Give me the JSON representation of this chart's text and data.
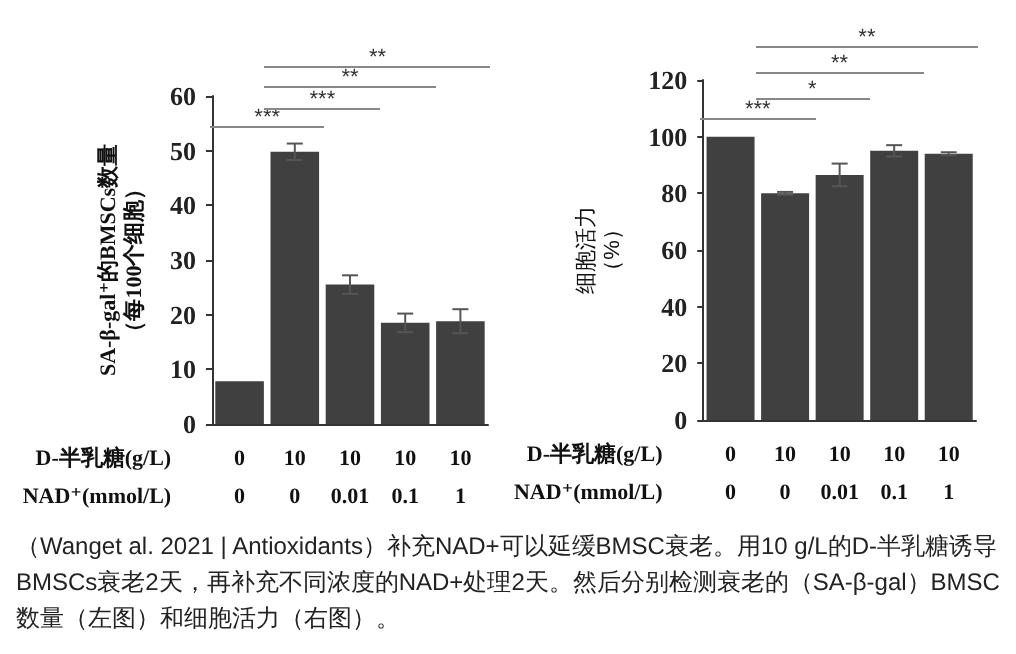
{
  "chart_data": [
    {
      "type": "bar",
      "ylabel": "SA-β-gal⁺的BMSCs数量（每100个细胞）",
      "xlabel": "D-半乳糖(g/L)\nNAD⁺(mmol/L)",
      "categories": [
        "0\n0",
        "10\n0",
        "10\n0.01",
        "10\n0.1",
        "10\n1"
      ],
      "values": [
        7.8,
        49.8,
        25.5,
        18.5,
        18.8
      ],
      "errors": [
        null,
        1.5,
        1.7,
        1.7,
        2.2
      ],
      "color": "#404040",
      "ylim": [
        0,
        60
      ],
      "yticks": [
        0,
        10,
        20,
        30,
        40,
        50,
        60
      ],
      "annotations": [
        "***",
        "***",
        "**",
        "**",
        "（Wanget al. 2021 | Antioxidants）补充NAD+可以延缓BMSC衰老。用10 g/L的D-半乳糖诱导BMSCs衰老2天，再补充不同浓度的NAD+处理2天。然后分别检测衰老的（SA-β-gal）BMSC数量（左图）和细胞活力（右图）。"
      ]
    },
    {
      "type": "bar",
      "ylabel": "细胞活力（%）",
      "xlabel": "D-半乳糖(g/L)\nNAD⁺(mmol/L)",
      "categories": [
        "0\n0",
        "10\n0",
        "10\n0.01",
        "10\n0.1",
        "10\n1"
      ],
      "values": [
        100,
        80,
        86.5,
        95,
        94
      ],
      "errors": [
        null,
        0.5,
        4,
        2,
        0.5
      ],
      "color": "#404040",
      "ylim": [
        0,
        120
      ],
      "yticks": [
        0,
        20,
        40,
        60,
        80,
        100,
        120
      ],
      "annotations": [
        "***",
        "*",
        "**",
        "**"
      ]
    }
  ]
}
